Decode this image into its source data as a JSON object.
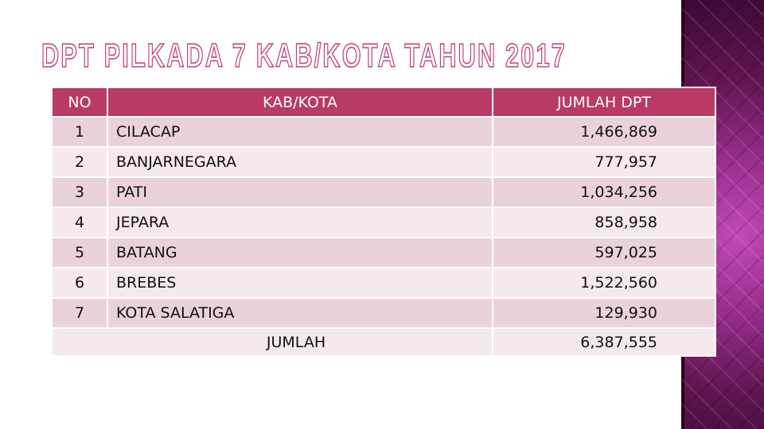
{
  "title": "DPT PILKADA 7 KAB/KOTA TAHUN 2017",
  "colors": {
    "header_bg": "#b83a65",
    "row_dark": "#ead2da",
    "row_light": "#f5e9ed",
    "title_stroke": "#c2407a",
    "side_panel": "#9a2f8f"
  },
  "table": {
    "headers": {
      "no": "NO",
      "kab": "KAB/KOTA",
      "dpt": "JUMLAH DPT"
    },
    "rows": [
      {
        "no": "1",
        "kab": "CILACAP",
        "dpt": "1,466,869"
      },
      {
        "no": "2",
        "kab": "BANJARNEGARA",
        "dpt": "777,957"
      },
      {
        "no": "3",
        "kab": "PATI",
        "dpt": "1,034,256"
      },
      {
        "no": "4",
        "kab": "JEPARA",
        "dpt": "858,958"
      },
      {
        "no": "5",
        "kab": "BATANG",
        "dpt": "597,025"
      },
      {
        "no": "6",
        "kab": "BREBES",
        "dpt": "1,522,560"
      },
      {
        "no": "7",
        "kab": "KOTA SALATIGA",
        "dpt": "129,930"
      }
    ],
    "total": {
      "label": "JUMLAH",
      "value": "6,387,555"
    }
  }
}
